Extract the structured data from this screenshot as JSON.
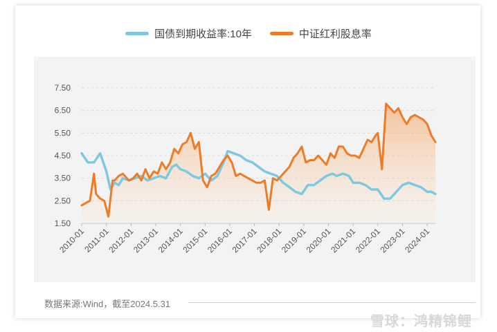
{
  "chart_data": {
    "type": "line",
    "yticks": [
      "7.50",
      "6.50",
      "5.50",
      "4.50",
      "3.50",
      "2.50",
      "1.50"
    ],
    "ylim": [
      1.5,
      7.5
    ],
    "xticks": [
      "2010-01",
      "2011-01",
      "2012-01",
      "2013-01",
      "2014-01",
      "2015-01",
      "2016-01",
      "2017-01",
      "2018-01",
      "2019-01",
      "2020-01",
      "2021-01",
      "2022-01",
      "2023-01",
      "2024-01"
    ],
    "xlim": [
      "2010-01",
      "2024-05"
    ],
    "grid": "horizontal dashed",
    "legend_position": "top-center",
    "series": [
      {
        "name": "国债到期收益率:10年",
        "color": "#7ec8e0",
        "x": [
          "2010-01",
          "2010-04",
          "2010-07",
          "2010-10",
          "2011-01",
          "2011-03",
          "2011-05",
          "2011-07",
          "2011-09",
          "2011-12",
          "2012-03",
          "2012-06",
          "2012-09",
          "2012-12",
          "2013-03",
          "2013-06",
          "2013-09",
          "2013-11",
          "2014-01",
          "2014-04",
          "2014-07",
          "2014-10",
          "2015-01",
          "2015-04",
          "2015-07",
          "2015-10",
          "2015-12",
          "2016-03",
          "2016-06",
          "2016-09",
          "2016-12",
          "2017-03",
          "2017-06",
          "2017-09",
          "2017-12",
          "2018-03",
          "2018-06",
          "2018-09",
          "2018-12",
          "2019-03",
          "2019-06",
          "2019-09",
          "2019-12",
          "2020-03",
          "2020-05",
          "2020-08",
          "2020-11",
          "2021-01",
          "2021-04",
          "2021-07",
          "2021-10",
          "2022-01",
          "2022-04",
          "2022-07",
          "2022-10",
          "2022-11",
          "2023-01",
          "2023-04",
          "2023-07",
          "2023-10",
          "2024-01",
          "2024-03",
          "2024-05"
        ],
        "values": [
          4.6,
          4.2,
          4.2,
          4.6,
          3.8,
          3.0,
          3.3,
          3.2,
          3.5,
          3.4,
          3.5,
          3.6,
          3.4,
          3.5,
          3.6,
          3.5,
          4.0,
          4.1,
          3.9,
          3.8,
          3.6,
          3.5,
          3.7,
          3.4,
          3.6,
          4.2,
          4.7,
          4.6,
          4.5,
          4.3,
          4.2,
          4.0,
          3.8,
          3.7,
          3.6,
          3.3,
          3.1,
          2.9,
          2.8,
          3.2,
          3.2,
          3.4,
          3.6,
          3.7,
          3.6,
          3.7,
          3.6,
          3.3,
          3.3,
          3.2,
          3.0,
          3.0,
          2.6,
          2.6,
          2.9,
          3.0,
          3.2,
          3.3,
          3.2,
          3.1,
          2.9,
          2.9,
          2.8
        ]
      },
      {
        "name": "中证红利股息率",
        "color": "#ec7c28",
        "x": [
          "2010-01",
          "2010-03",
          "2010-05",
          "2010-07",
          "2010-08",
          "2010-10",
          "2010-12",
          "2011-02",
          "2011-04",
          "2011-05",
          "2011-07",
          "2011-09",
          "2011-12",
          "2012-02",
          "2012-04",
          "2012-06",
          "2012-08",
          "2012-10",
          "2012-12",
          "2013-02",
          "2013-04",
          "2013-06",
          "2013-08",
          "2013-10",
          "2013-12",
          "2014-02",
          "2014-04",
          "2014-06",
          "2014-08",
          "2014-10",
          "2014-12",
          "2015-02",
          "2015-04",
          "2015-06",
          "2015-08",
          "2015-10",
          "2015-12",
          "2016-02",
          "2016-04",
          "2016-06",
          "2016-08",
          "2016-10",
          "2016-12",
          "2017-02",
          "2017-04",
          "2017-06",
          "2017-08",
          "2017-10",
          "2017-12",
          "2018-02",
          "2018-04",
          "2018-06",
          "2018-08",
          "2018-10",
          "2018-12",
          "2019-02",
          "2019-04",
          "2019-06",
          "2019-08",
          "2019-10",
          "2019-12",
          "2020-02",
          "2020-04",
          "2020-06",
          "2020-08",
          "2020-10",
          "2020-12",
          "2021-02",
          "2021-04",
          "2021-06",
          "2021-08",
          "2021-10",
          "2021-12",
          "2022-01",
          "2022-03",
          "2022-05",
          "2022-07",
          "2022-09",
          "2022-11",
          "2023-01",
          "2023-03",
          "2023-05",
          "2023-07",
          "2023-09",
          "2023-11",
          "2024-01",
          "2024-03",
          "2024-05"
        ],
        "values": [
          2.3,
          2.4,
          2.5,
          3.7,
          2.8,
          2.6,
          2.5,
          1.8,
          3.4,
          3.4,
          3.6,
          3.7,
          3.4,
          3.5,
          3.7,
          3.4,
          3.9,
          3.5,
          3.8,
          3.7,
          4.2,
          3.9,
          4.2,
          4.8,
          4.6,
          5.0,
          5.1,
          5.5,
          4.8,
          5.1,
          3.4,
          3.1,
          3.6,
          3.7,
          4.0,
          4.3,
          4.5,
          4.2,
          3.6,
          3.7,
          3.6,
          3.5,
          3.4,
          3.3,
          3.3,
          3.4,
          2.1,
          3.5,
          3.4,
          3.6,
          3.8,
          4.0,
          4.4,
          4.6,
          4.9,
          4.2,
          4.3,
          4.3,
          4.5,
          4.3,
          4.1,
          4.6,
          4.4,
          4.9,
          4.9,
          4.6,
          4.5,
          4.5,
          4.4,
          4.8,
          5.2,
          5.1,
          5.4,
          5.5,
          3.9,
          6.8,
          6.6,
          6.4,
          6.6,
          6.2,
          5.9,
          6.2,
          6.3,
          6.2,
          6.1,
          5.9,
          5.4,
          5.1
        ]
      }
    ]
  },
  "footer": {
    "source": "数据来源:Wind，截至2024.5.31",
    "watermark": "雪球：鸿精锦鲤"
  }
}
